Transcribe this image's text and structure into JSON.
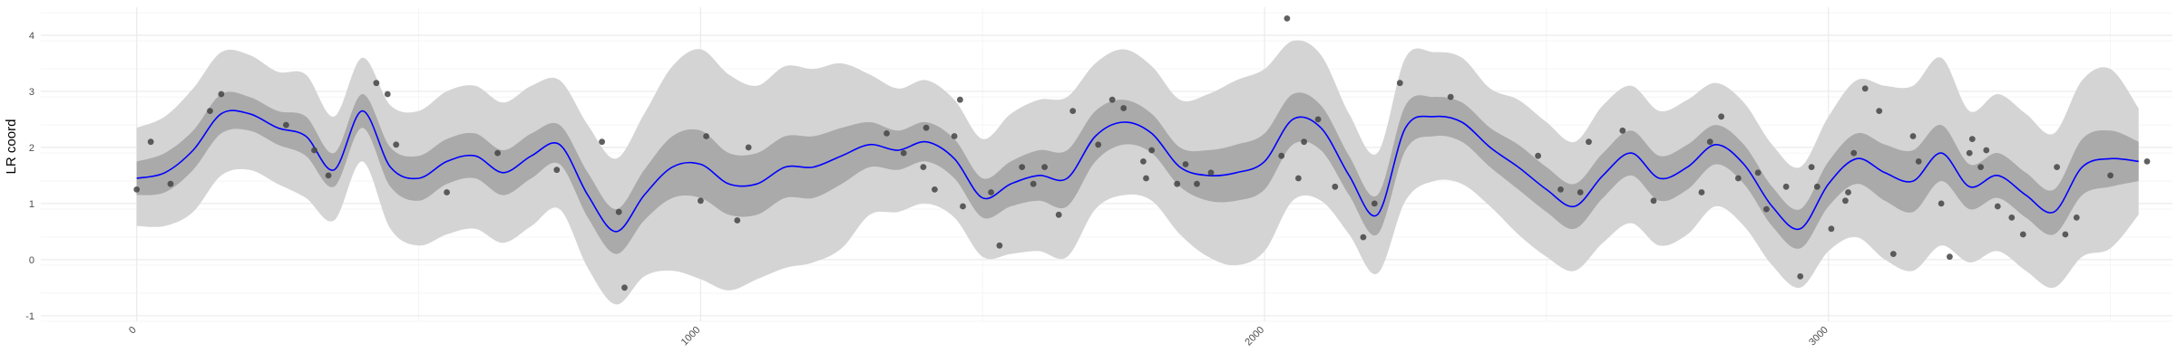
{
  "chart_data": {
    "type": "line",
    "title": "",
    "xlabel": "",
    "ylabel": "LR coord",
    "xlim": [
      -170,
      3610
    ],
    "ylim": [
      -1.1,
      4.5
    ],
    "x_ticks": [
      "0",
      "1000",
      "2000",
      "3000"
    ],
    "y_ticks": [
      "-1",
      "0",
      "1",
      "2",
      "3",
      "4"
    ],
    "grid": true,
    "legend": "none",
    "colors": {
      "fit_line": "#0000ff",
      "inner_band": "#aaaaaa",
      "outer_band": "#d4d4d4",
      "points": "#444444",
      "grid_major": "#ebebeb",
      "grid_minor": "#f5f5f5"
    },
    "series": [
      {
        "role": "fit",
        "x": [
          0,
          50,
          100,
          150,
          200,
          250,
          300,
          350,
          400,
          450,
          500,
          550,
          600,
          650,
          700,
          750,
          800,
          850,
          900,
          950,
          1000,
          1050,
          1100,
          1150,
          1200,
          1250,
          1300,
          1350,
          1400,
          1450,
          1500,
          1550,
          1600,
          1650,
          1700,
          1750,
          1800,
          1850,
          1900,
          1950,
          2000,
          2050,
          2100,
          2150,
          2200,
          2250,
          2300,
          2350,
          2400,
          2450,
          2500,
          2550,
          2600,
          2650,
          2700,
          2750,
          2800,
          2850,
          2900,
          2950,
          3000,
          3050,
          3100,
          3150,
          3200,
          3250,
          3300,
          3350,
          3400,
          3450,
          3500,
          3550
        ],
        "y": [
          1.45,
          1.55,
          1.95,
          2.6,
          2.6,
          2.35,
          2.2,
          1.6,
          2.65,
          1.65,
          1.45,
          1.75,
          1.85,
          1.55,
          1.85,
          2.05,
          1.15,
          0.5,
          1.15,
          1.65,
          1.7,
          1.35,
          1.35,
          1.65,
          1.65,
          1.85,
          2.05,
          1.95,
          2.1,
          1.8,
          1.1,
          1.35,
          1.5,
          1.45,
          2.2,
          2.45,
          2.25,
          1.65,
          1.5,
          1.55,
          1.75,
          2.5,
          2.35,
          1.5,
          0.8,
          2.35,
          2.55,
          2.45,
          2.0,
          1.65,
          1.25,
          0.95,
          1.5,
          1.9,
          1.45,
          1.65,
          2.05,
          1.7,
          0.95,
          0.55,
          1.35,
          1.8,
          1.55,
          1.4,
          1.9,
          1.3,
          1.5,
          1.15,
          0.85,
          1.65,
          1.8,
          1.75
        ],
        "lower_inner": [
          1.15,
          1.2,
          1.6,
          2.25,
          2.3,
          2.05,
          1.85,
          1.3,
          2.35,
          1.3,
          1.05,
          1.35,
          1.45,
          1.15,
          1.45,
          1.7,
          0.75,
          0.1,
          0.7,
          1.1,
          1.1,
          0.8,
          0.8,
          1.1,
          1.1,
          1.35,
          1.65,
          1.6,
          1.75,
          1.45,
          0.75,
          0.95,
          1.05,
          0.95,
          1.75,
          2.05,
          1.9,
          1.3,
          1.05,
          1.05,
          1.25,
          2.05,
          1.95,
          1.15,
          0.45,
          1.95,
          2.2,
          2.1,
          1.65,
          1.25,
          0.85,
          0.55,
          1.1,
          1.5,
          1.05,
          1.25,
          1.7,
          1.35,
          0.6,
          0.2,
          0.95,
          1.35,
          1.05,
          0.85,
          1.4,
          0.9,
          1.1,
          0.75,
          0.45,
          1.15,
          1.3,
          1.4
        ],
        "upper_inner": [
          1.75,
          1.9,
          2.3,
          2.95,
          2.9,
          2.65,
          2.55,
          1.9,
          2.95,
          2.0,
          1.85,
          2.15,
          2.25,
          1.95,
          2.25,
          2.4,
          1.55,
          0.9,
          1.6,
          2.2,
          2.3,
          1.9,
          1.9,
          2.2,
          2.2,
          2.35,
          2.45,
          2.3,
          2.45,
          2.15,
          1.45,
          1.75,
          1.95,
          1.95,
          2.65,
          2.85,
          2.6,
          2.0,
          1.95,
          2.05,
          2.25,
          2.95,
          2.75,
          1.85,
          1.15,
          2.75,
          2.9,
          2.8,
          2.35,
          2.05,
          1.65,
          1.35,
          1.9,
          2.3,
          1.85,
          2.05,
          2.4,
          2.05,
          1.3,
          0.9,
          1.75,
          2.25,
          2.05,
          1.95,
          2.4,
          1.7,
          1.9,
          1.55,
          1.25,
          2.15,
          2.3,
          2.1
        ],
        "lower_outer": [
          0.6,
          0.6,
          0.85,
          1.5,
          1.6,
          1.35,
          1.1,
          0.7,
          1.75,
          0.55,
          0.25,
          0.45,
          0.55,
          0.3,
          0.6,
          0.9,
          -0.15,
          -0.8,
          -0.3,
          -0.2,
          -0.35,
          -0.55,
          -0.35,
          -0.15,
          -0.05,
          0.2,
          0.8,
          0.85,
          1.0,
          0.75,
          0.05,
          0.1,
          0.15,
          0.05,
          0.9,
          1.15,
          1.05,
          0.45,
          0.05,
          -0.1,
          0.15,
          1.05,
          1.05,
          0.45,
          -0.25,
          1.05,
          1.4,
          1.35,
          0.95,
          0.45,
          0.05,
          -0.2,
          0.3,
          0.65,
          0.25,
          0.45,
          0.95,
          0.6,
          -0.1,
          -0.5,
          0.15,
          0.4,
          0.0,
          -0.2,
          0.25,
          -0.05,
          0.15,
          -0.2,
          -0.5,
          0.05,
          0.2,
          0.8
        ],
        "upper_outer": [
          2.35,
          2.55,
          3.05,
          3.7,
          3.65,
          3.35,
          3.3,
          2.55,
          3.6,
          2.75,
          2.65,
          3.0,
          3.1,
          2.8,
          3.1,
          3.2,
          2.4,
          1.8,
          2.6,
          3.45,
          3.75,
          3.3,
          3.1,
          3.45,
          3.4,
          3.5,
          3.3,
          3.05,
          3.2,
          2.85,
          2.15,
          2.6,
          2.85,
          2.9,
          3.5,
          3.75,
          3.45,
          2.85,
          2.95,
          3.2,
          3.4,
          3.9,
          3.65,
          2.6,
          1.9,
          3.6,
          3.7,
          3.6,
          3.05,
          2.85,
          2.45,
          2.1,
          2.75,
          3.1,
          2.65,
          2.85,
          3.15,
          2.8,
          2.05,
          1.65,
          2.55,
          3.2,
          3.1,
          3.1,
          3.6,
          2.65,
          2.95,
          2.6,
          2.25,
          3.2,
          3.4,
          2.7
        ]
      },
      {
        "role": "observed",
        "type": "scatter",
        "x": [
          0,
          25,
          60,
          130,
          150,
          265,
          315,
          340,
          425,
          445,
          460,
          550,
          640,
          745,
          825,
          855,
          865,
          1000,
          1010,
          1065,
          1085,
          1330,
          1360,
          1395,
          1400,
          1415,
          1450,
          1460,
          1465,
          1515,
          1530,
          1570,
          1590,
          1610,
          1635,
          1660,
          1705,
          1730,
          1750,
          1785,
          1790,
          1800,
          1845,
          1860,
          1880,
          1905,
          2030,
          2040,
          2060,
          2070,
          2095,
          2125,
          2175,
          2195,
          2240,
          2330,
          2485,
          2525,
          2560,
          2575,
          2635,
          2690,
          2775,
          2790,
          2810,
          2840,
          2875,
          2890,
          2925,
          2950,
          2970,
          2980,
          3005,
          3030,
          3035,
          3045,
          3065,
          3090,
          3115,
          3150,
          3160,
          3200,
          3215,
          3250,
          3255,
          3270,
          3280,
          3300,
          3325,
          3345,
          3405,
          3420,
          3440,
          3500,
          3565
        ],
        "y": [
          1.25,
          2.1,
          1.35,
          2.65,
          2.95,
          2.4,
          1.95,
          1.5,
          3.15,
          2.95,
          2.05,
          1.2,
          1.9,
          1.6,
          2.1,
          0.85,
          -0.5,
          1.05,
          2.2,
          0.7,
          2.0,
          2.25,
          1.9,
          1.65,
          2.35,
          1.25,
          2.2,
          2.85,
          0.95,
          1.2,
          0.25,
          1.65,
          1.35,
          1.65,
          0.8,
          2.65,
          2.05,
          2.85,
          2.7,
          1.75,
          1.45,
          1.95,
          1.35,
          1.7,
          1.35,
          1.55,
          1.85,
          4.3,
          1.45,
          2.1,
          2.5,
          1.3,
          0.4,
          1.0,
          3.15,
          2.9,
          1.85,
          1.25,
          1.2,
          2.1,
          2.3,
          1.05,
          1.2,
          2.1,
          2.55,
          1.45,
          1.55,
          0.9,
          1.3,
          -0.3,
          1.65,
          1.3,
          0.55,
          1.05,
          1.2,
          1.9,
          3.05,
          2.65,
          0.1,
          2.2,
          1.75,
          1.0,
          0.05,
          1.9,
          2.15,
          1.65,
          1.95,
          0.95,
          0.75,
          0.45,
          1.65,
          0.45,
          0.75,
          1.5,
          1.75
        ]
      }
    ]
  }
}
